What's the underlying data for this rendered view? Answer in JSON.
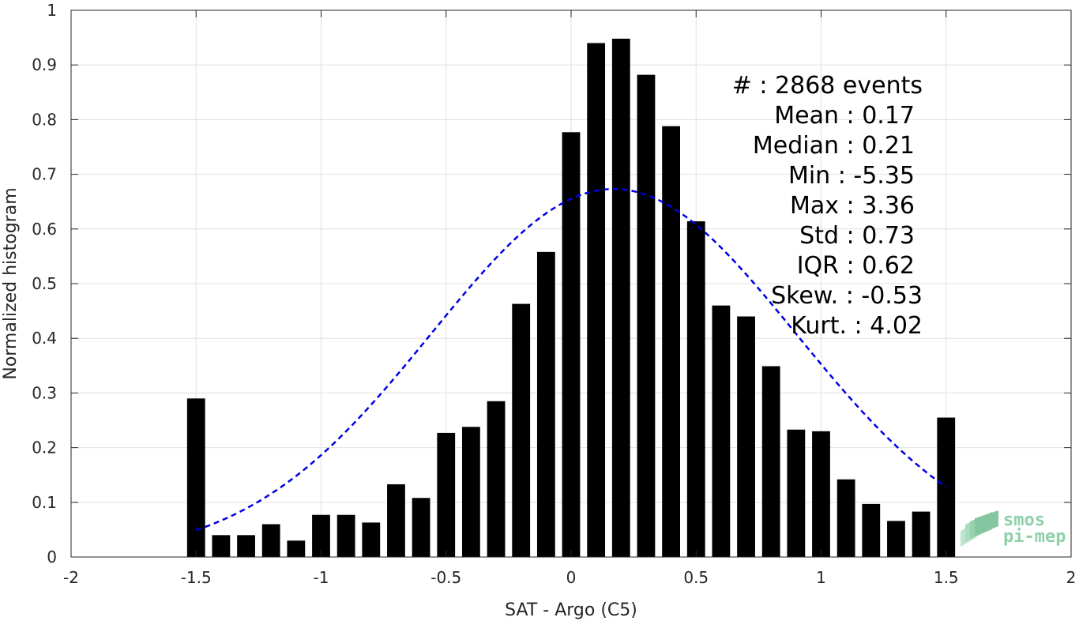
{
  "chart_data": {
    "type": "bar",
    "xlabel": "SAT - Argo (C5)",
    "ylabel": "Normalized histogram",
    "xlim": [
      -2,
      2
    ],
    "ylim": [
      0,
      1
    ],
    "xticks": [
      "-2",
      "-1.5",
      "-1",
      "-0.5",
      "0",
      "0.5",
      "1",
      "1.5",
      "2"
    ],
    "yticks": [
      "0",
      "0.1",
      "0.2",
      "0.3",
      "0.4",
      "0.5",
      "0.6",
      "0.7",
      "0.8",
      "0.9",
      "1"
    ],
    "grid": true,
    "bar_color": "#000000",
    "fit_color": "#0000e6",
    "x": [
      -1.5,
      -1.4,
      -1.3,
      -1.2,
      -1.1,
      -1.0,
      -0.9,
      -0.8,
      -0.7,
      -0.6,
      -0.5,
      -0.4,
      -0.3,
      -0.2,
      -0.1,
      0.0,
      0.1,
      0.2,
      0.3,
      0.4,
      0.5,
      0.6,
      0.7,
      0.8,
      0.9,
      1.0,
      1.1,
      1.2,
      1.3,
      1.4,
      1.5
    ],
    "values": [
      0.29,
      0.04,
      0.04,
      0.06,
      0.03,
      0.077,
      0.077,
      0.063,
      0.133,
      0.108,
      0.227,
      0.238,
      0.285,
      0.463,
      0.558,
      0.777,
      0.94,
      0.948,
      0.882,
      0.788,
      0.614,
      0.46,
      0.44,
      0.349,
      0.233,
      0.23,
      0.142,
      0.097,
      0.066,
      0.083,
      0.255
    ],
    "fit": {
      "type": "normal",
      "mean": 0.17,
      "std": 0.73,
      "x_range": [
        -1.5,
        1.5
      ]
    },
    "stats": [
      {
        "label": "#  : 2868 events"
      },
      {
        "label": "Mean : 0.17"
      },
      {
        "label": "Median : 0.21"
      },
      {
        "label": "Min : -5.35"
      },
      {
        "label": "Max : 3.36"
      },
      {
        "label": "Std : 0.73"
      },
      {
        "label": "IQR : 0.62"
      },
      {
        "label": "Skew. : -0.53"
      },
      {
        "label": "Kurt. : 4.02"
      }
    ]
  },
  "logo": {
    "line1": "smos",
    "line2": "pi-mep",
    "color": "#8fd0a8"
  }
}
